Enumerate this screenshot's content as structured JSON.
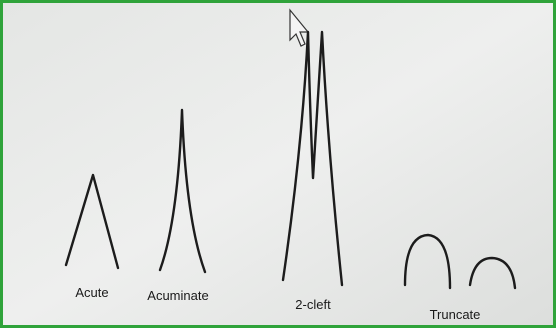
{
  "diagram": {
    "type": "leaf-apex-shapes",
    "labels": [
      "Acute",
      "Acuminate",
      "2-cleft",
      "Truncate"
    ]
  }
}
